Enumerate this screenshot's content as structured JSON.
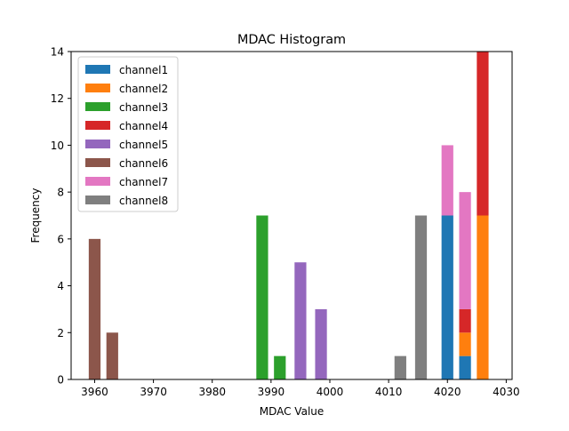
{
  "chart_data": {
    "type": "bar",
    "stacked": true,
    "title": "MDAC Histogram",
    "xlabel": "MDAC Value",
    "ylabel": "Frequency",
    "xlim": [
      3956,
      4031
    ],
    "ylim": [
      0,
      14
    ],
    "xticks": [
      3960,
      3970,
      3980,
      3990,
      4000,
      4010,
      4020,
      4030
    ],
    "yticks": [
      0,
      2,
      4,
      6,
      8,
      10,
      12,
      14
    ],
    "bar_width": 2.0,
    "legend_position": "top-left",
    "series": [
      {
        "name": "channel1",
        "color": "#1f77b4",
        "bars": [
          {
            "x": 4020,
            "value": 7
          },
          {
            "x": 4023,
            "value": 1
          }
        ]
      },
      {
        "name": "channel2",
        "color": "#ff7f0e",
        "bars": [
          {
            "x": 4023,
            "value": 1
          },
          {
            "x": 4026,
            "value": 7
          }
        ]
      },
      {
        "name": "channel3",
        "color": "#2ca02c",
        "bars": [
          {
            "x": 3988.5,
            "value": 7
          },
          {
            "x": 3991.5,
            "value": 1
          }
        ]
      },
      {
        "name": "channel4",
        "color": "#d62728",
        "bars": [
          {
            "x": 4023,
            "value": 1
          },
          {
            "x": 4026,
            "value": 7
          }
        ]
      },
      {
        "name": "channel5",
        "color": "#9467bd",
        "bars": [
          {
            "x": 3995,
            "value": 5
          },
          {
            "x": 3998.5,
            "value": 3
          }
        ]
      },
      {
        "name": "channel6",
        "color": "#8c564b",
        "bars": [
          {
            "x": 3960,
            "value": 6
          },
          {
            "x": 3963,
            "value": 2
          }
        ]
      },
      {
        "name": "channel7",
        "color": "#e377c2",
        "bars": [
          {
            "x": 4020,
            "value": 3
          },
          {
            "x": 4023,
            "value": 5
          }
        ]
      },
      {
        "name": "channel8",
        "color": "#7f7f7f",
        "bars": [
          {
            "x": 4012,
            "value": 1
          },
          {
            "x": 4015.5,
            "value": 7
          }
        ]
      }
    ]
  }
}
